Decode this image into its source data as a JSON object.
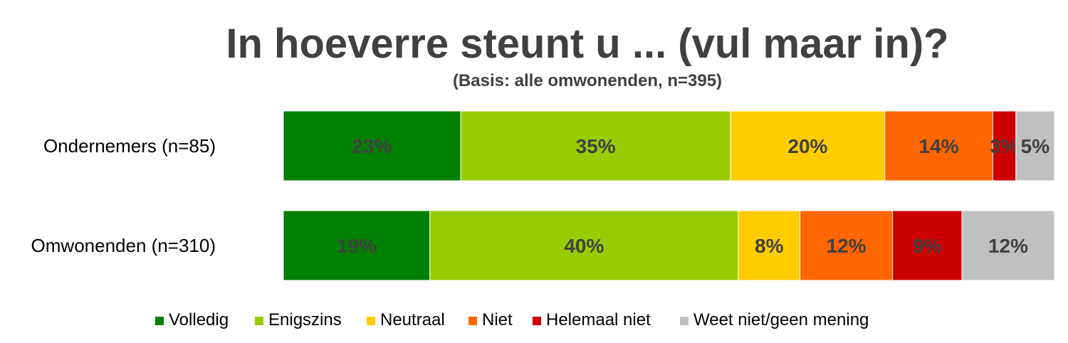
{
  "title": "In hoeverre steunt u ... (vul maar in)?",
  "subtitle": "(Basis: alle omwonenden, n=395)",
  "colors": {
    "Volledig": "#008000",
    "Enigszins": "#99cc00",
    "Neutraal": "#ffcc00",
    "Niet": "#ff6600",
    "Helemaal niet": "#cc0000",
    "Weet niet/geen mening": "#c0c0c0",
    "label_text": "#404040"
  },
  "chart_data": {
    "type": "bar",
    "orientation": "horizontal",
    "stacked": "100%",
    "categories": [
      "Ondernemers (n=85)",
      "Omwonenden (n=310)"
    ],
    "series": [
      {
        "name": "Volledig",
        "values": [
          23,
          19
        ],
        "labels": [
          "23%",
          "19%"
        ]
      },
      {
        "name": "Enigszins",
        "values": [
          35,
          40
        ],
        "labels": [
          "35%",
          "40%"
        ]
      },
      {
        "name": "Neutraal",
        "values": [
          20,
          8
        ],
        "labels": [
          "20%",
          "8%"
        ]
      },
      {
        "name": "Niet",
        "values": [
          14,
          12
        ],
        "labels": [
          "14%",
          "12%"
        ]
      },
      {
        "name": "Helemaal niet",
        "values": [
          3,
          9
        ],
        "labels": [
          "3%",
          "9%"
        ]
      },
      {
        "name": "Weet niet/geen mening",
        "values": [
          5,
          12
        ],
        "labels": [
          "5%",
          "12%"
        ]
      }
    ],
    "legend_position": "bottom",
    "grid": false
  }
}
